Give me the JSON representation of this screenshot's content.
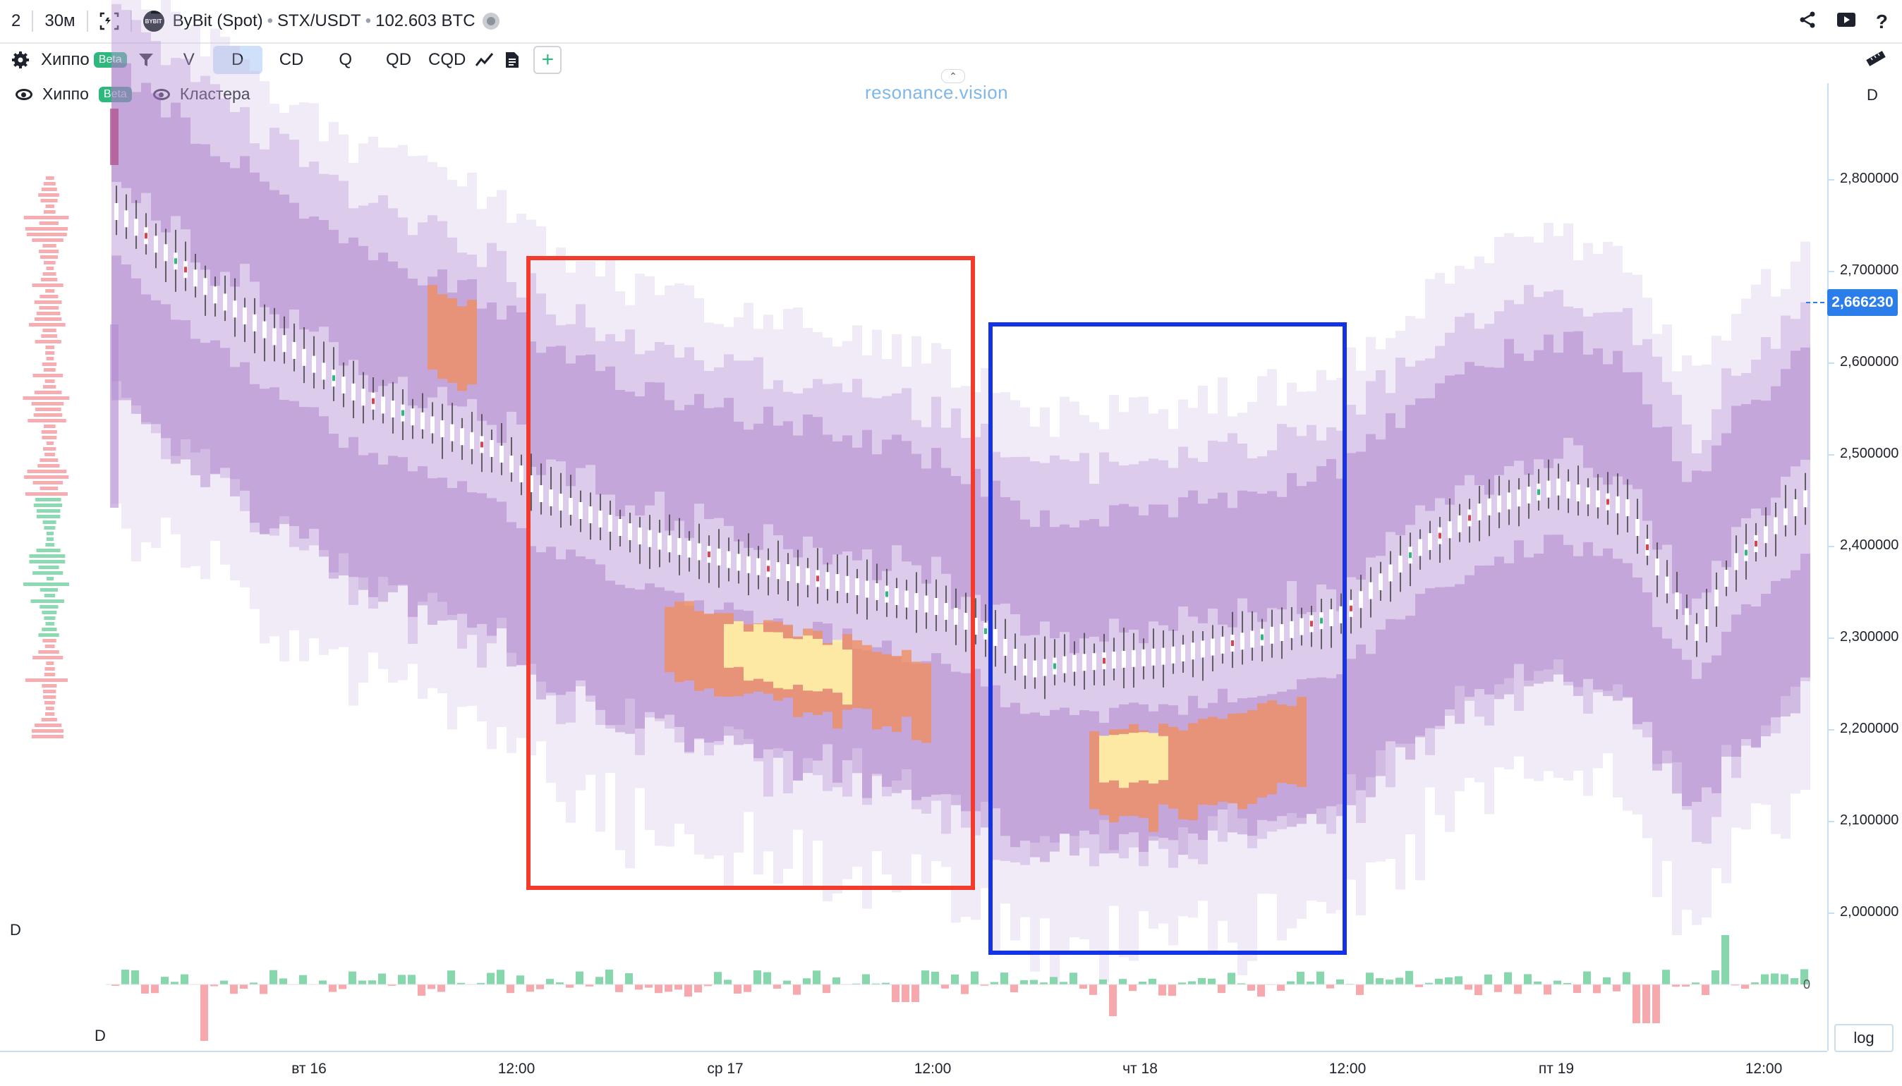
{
  "topbar": {
    "layout_count": "2",
    "timeframe": "30м",
    "exchange": "ByBit (Spot)",
    "symbol": "STX/USDT",
    "volume": "102.603 BTC",
    "exchange_logo_text": "BYBIT"
  },
  "toolbar": {
    "indicator_name": "Хиппо",
    "beta_badge": "Beta",
    "tools": [
      "V",
      "D",
      "CD",
      "Q",
      "QD",
      "CQD"
    ],
    "active_tool": "D",
    "add_label": "+"
  },
  "legend": {
    "hippo_label": "Хиппо",
    "beta_badge": "Beta",
    "clusters_label": "Кластера"
  },
  "brand": "resonance.vision",
  "price_axis": {
    "label": "D",
    "ticks": [
      "2,800000",
      "2,700000",
      "2,600000",
      "2,500000",
      "2,400000",
      "2,300000",
      "2,200000",
      "2,100000",
      "2,000000"
    ],
    "current_price": "2,666230"
  },
  "time_axis": {
    "ticks": [
      "вт 16",
      "12:00",
      "ср 17",
      "12:00",
      "чт 18",
      "12:00",
      "пт 19",
      "12:00"
    ]
  },
  "delta_pane": {
    "label_top": "D",
    "label_bottom": "D",
    "zero_label": "0"
  },
  "log_button": "log",
  "colors": {
    "accent_blue": "#2b7de9",
    "beta_green": "#2db87d",
    "heat_purple": "#a86cc1",
    "heat_orange": "#f28c5a",
    "heat_yellow": "#fff2a8",
    "up_volume": "#7fd6a8",
    "down_volume": "#f5a3a8",
    "red_box": "#f23b2a",
    "blue_box": "#1433e6"
  },
  "icons": {
    "settings": "gear-icon",
    "filter": "filter-icon",
    "line_chart": "line-chart-icon",
    "document": "document-icon",
    "share": "share-icon",
    "video": "video-icon",
    "help": "help-icon",
    "ruler": "ruler-icon",
    "screenshot": "screenshot-icon",
    "eye": "eye-icon"
  }
}
